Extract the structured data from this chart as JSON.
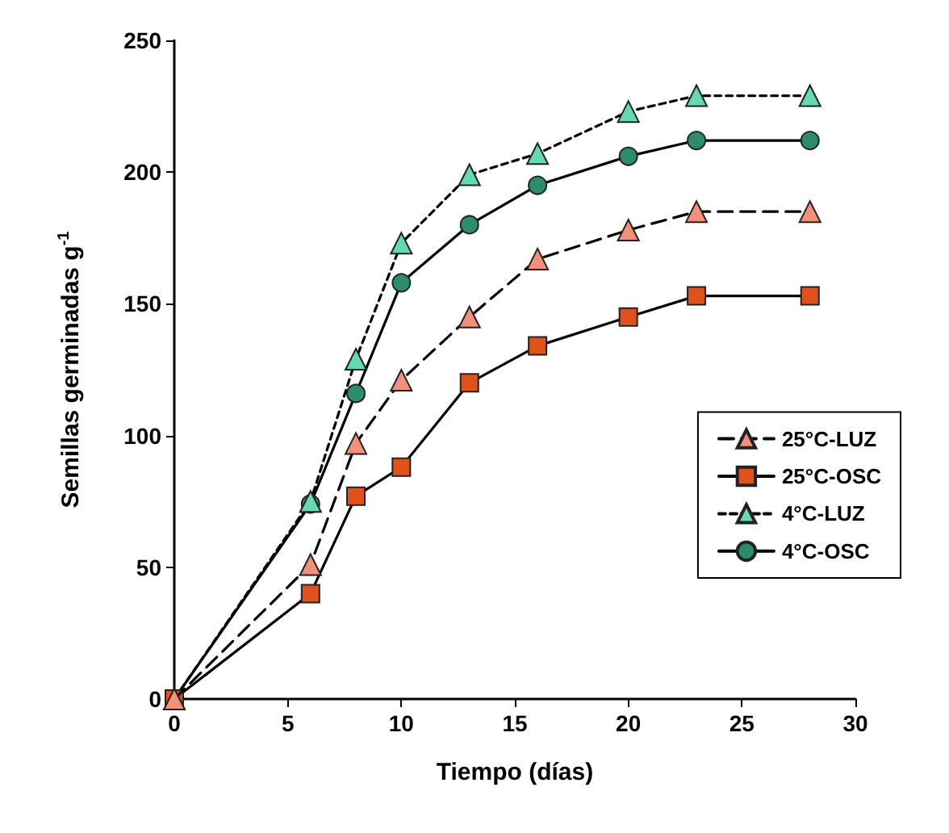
{
  "chart_data": {
    "type": "line",
    "xlabel": "Tiempo (días)",
    "ylabel": "Semillas germinadas g$^{-1}$",
    "x": [
      0,
      6,
      8,
      10,
      13,
      16,
      20,
      23,
      28
    ],
    "series": [
      {
        "name": "25°C-LUZ",
        "color": "#f4907a",
        "marker": "triangle",
        "line_style": "dashed",
        "values": [
          0,
          51,
          97,
          121,
          145,
          167,
          178,
          185,
          185
        ]
      },
      {
        "name": "25°C-OSC",
        "color": "#e0521c",
        "marker": "square",
        "line_style": "solid",
        "values": [
          0,
          40,
          77,
          88,
          120,
          134,
          145,
          153,
          153
        ]
      },
      {
        "name": "4°C-LUZ",
        "color": "#66d9b0",
        "marker": "triangle",
        "line_style": "dotted",
        "values": [
          0,
          75,
          129,
          173,
          199,
          207,
          223,
          229,
          229
        ]
      },
      {
        "name": "4°C-OSC",
        "color": "#2e8b6e",
        "marker": "circle",
        "line_style": "solid",
        "values": [
          0,
          74,
          116,
          158,
          180,
          195,
          206,
          212,
          212
        ]
      }
    ],
    "xlim": [
      0,
      30
    ],
    "xticks": [
      0,
      5,
      10,
      15,
      20,
      25,
      30
    ],
    "ylim": [
      0,
      250
    ],
    "yticks": [
      0,
      50,
      100,
      150,
      200,
      250
    ],
    "grid": false,
    "legend": "bottom right"
  }
}
